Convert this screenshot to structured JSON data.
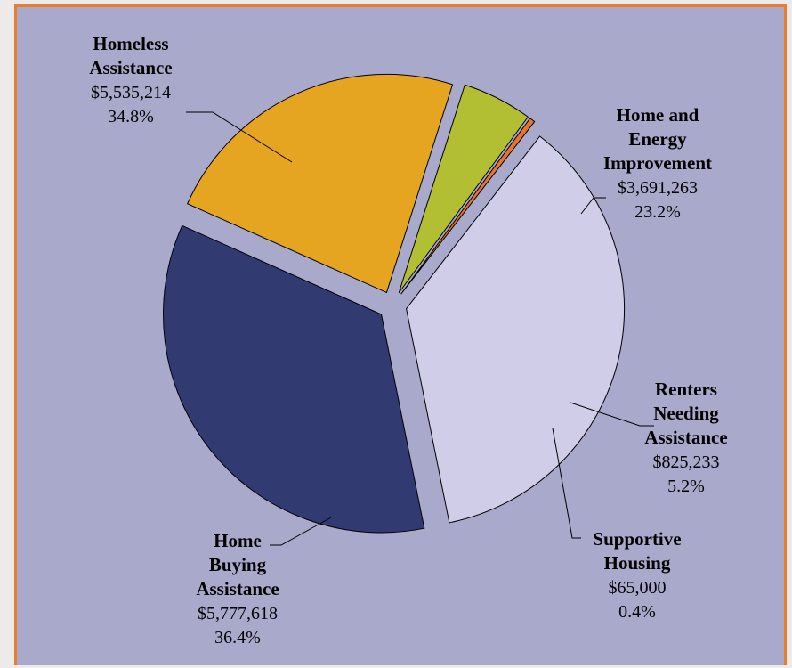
{
  "chart_data": {
    "type": "pie",
    "exploded": true,
    "slices": [
      {
        "name_lines": [
          "Home and",
          "Energy",
          "Improvement"
        ],
        "amount": "$3,691,263",
        "percent": "23.2%",
        "value": 3691263,
        "color": "#e6a520"
      },
      {
        "name_lines": [
          "Renters",
          "Needing",
          "Assistance"
        ],
        "amount": "$825,233",
        "percent": "5.2%",
        "value": 825233,
        "color": "#b2bf32"
      },
      {
        "name_lines": [
          "Supportive",
          "Housing"
        ],
        "amount": "$65,000",
        "percent": "0.4%",
        "value": 65000,
        "color": "#e8742a"
      },
      {
        "name_lines": [
          "Home",
          "Buying",
          "Assistance"
        ],
        "amount": "$5,777,618",
        "percent": "36.4%",
        "value": 5777618,
        "color": "#cfcde8"
      },
      {
        "name_lines": [
          "Homeless",
          "Assistance"
        ],
        "amount": "$5,535,214",
        "percent": "34.8%",
        "value": 5535214,
        "color": "#323a72"
      }
    ]
  }
}
